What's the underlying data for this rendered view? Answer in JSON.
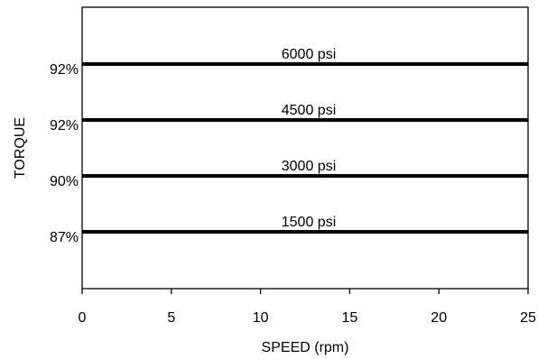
{
  "chart_data": {
    "type": "line",
    "title": "",
    "xlabel": "SPEED (rpm)",
    "ylabel": "TORQUE",
    "xlim": [
      0,
      25
    ],
    "xticks": [
      0,
      5,
      10,
      15,
      20,
      25
    ],
    "grid": false,
    "legend": "none",
    "series": [
      {
        "name": "6000 psi",
        "y_label": "92%"
      },
      {
        "name": "4500 psi",
        "y_label": "92%"
      },
      {
        "name": "3000 psi",
        "y_label": "90%"
      },
      {
        "name": "1500 psi",
        "y_label": "87%"
      }
    ],
    "line_color": "#000000"
  }
}
